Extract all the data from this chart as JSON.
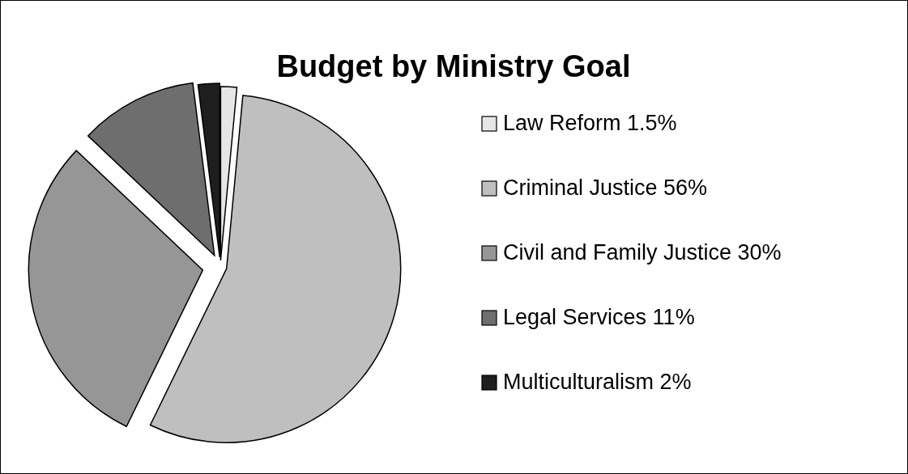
{
  "chart_data": {
    "type": "pie",
    "title": "Budget by Ministry Goal",
    "categories": [
      "Law Reform",
      "Criminal Justice",
      "Civil and Family Justice",
      "Legal Services",
      "Multiculturalism"
    ],
    "values": [
      1.5,
      56,
      30,
      11,
      2
    ],
    "value_labels": [
      "1.5%",
      "56%",
      "30%",
      "11%",
      "2%"
    ],
    "colors": [
      "#e6e6e6",
      "#bfbfbf",
      "#969696",
      "#6e6e6e",
      "#1e1e1e"
    ],
    "legend": "right"
  }
}
